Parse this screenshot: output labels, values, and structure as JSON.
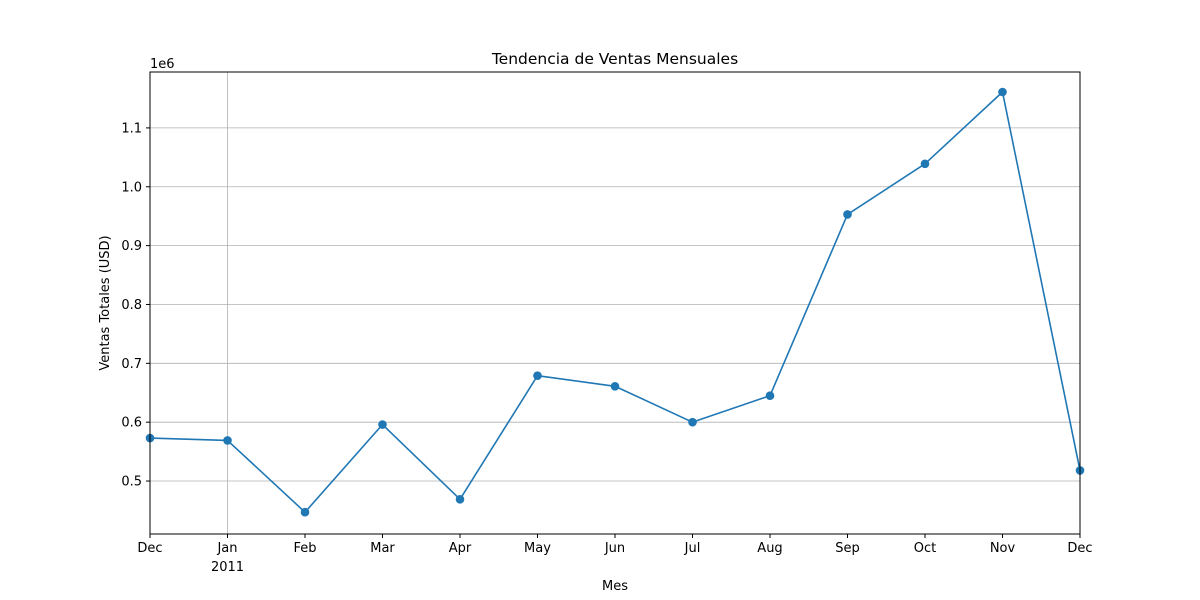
{
  "chart_data": {
    "type": "line",
    "title": "Tendencia de Ventas Mensuales",
    "xlabel": "Mes",
    "ylabel": "Ventas Totales (USD)",
    "y_offset_label": "1e6",
    "y_multiplier": 1000000,
    "x": [
      "2010-12",
      "2011-01",
      "2011-02",
      "2011-03",
      "2011-04",
      "2011-05",
      "2011-06",
      "2011-07",
      "2011-08",
      "2011-09",
      "2011-10",
      "2011-11",
      "2011-12"
    ],
    "x_tick_labels": [
      "Dec",
      "Jan",
      "Feb",
      "Mar",
      "Apr",
      "May",
      "Jun",
      "Jul",
      "Aug",
      "Sep",
      "Oct",
      "Nov",
      "Dec"
    ],
    "x_tick_sublabels": [
      "",
      "2011",
      "",
      "",
      "",
      "",
      "",
      "",
      "",
      "",
      "",
      "",
      ""
    ],
    "series": [
      {
        "values": [
          573000,
          569000,
          447000,
          596000,
          469000,
          679000,
          661000,
          600000,
          645000,
          953000,
          1039000,
          1161000,
          518000
        ],
        "color": "#1f77b4",
        "marker": "circle"
      }
    ],
    "ylim": [
      0.41,
      1.195
    ],
    "y_ticks": [
      0.5,
      0.6,
      0.7,
      0.8,
      0.9,
      1.0,
      1.1
    ],
    "y_tick_labels": [
      "0.5",
      "0.6",
      "0.7",
      "0.8",
      "0.9",
      "1.0",
      "1.1"
    ],
    "grid": true,
    "grid_color": "#b0b0b0",
    "legend": "none"
  }
}
